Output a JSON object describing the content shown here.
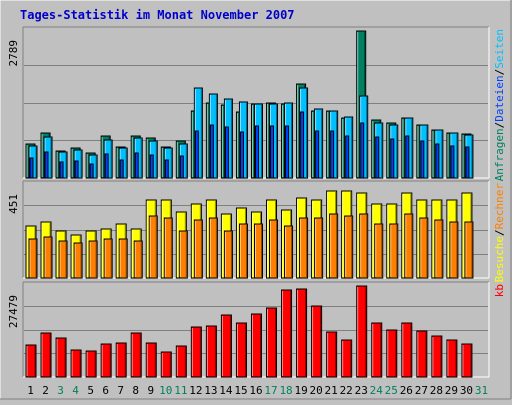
{
  "title": "Tages-Statistik im Monat November 2007",
  "colors": {
    "background": "#c0c0c0",
    "title": "#0000cc",
    "hits": "#008060",
    "files": "#0040ff",
    "pages": "#00c0ff",
    "visits": "#ffff00",
    "sites": "#ff8000",
    "kbytes": "#ff0000",
    "weekend_label": "#00805c"
  },
  "chart_data": {
    "type": "bar",
    "title": "Tages-Statistik im Monat November 2007",
    "categories": [
      "1",
      "2",
      "3",
      "4",
      "5",
      "6",
      "7",
      "8",
      "9",
      "10",
      "11",
      "12",
      "13",
      "14",
      "15",
      "16",
      "17",
      "18",
      "19",
      "20",
      "21",
      "22",
      "23",
      "24",
      "25",
      "26",
      "27",
      "28",
      "29",
      "30",
      "31"
    ],
    "weekend_days": [
      "3",
      "4",
      "10",
      "11",
      "17",
      "18",
      "24",
      "25",
      "31"
    ],
    "panels": [
      {
        "id": "requests",
        "max_label": "2789",
        "ymax": 2789,
        "legend": [
          "Anfragen",
          "/",
          "Dateien",
          "/",
          "Seiten"
        ],
        "series": [
          {
            "name": "Anfragen",
            "values": [
              650,
              860,
              520,
              570,
              470,
              790,
              580,
              800,
              750,
              580,
              700,
              1280,
              1430,
              1390,
              1250,
              1400,
              1420,
              1400,
              1790,
              1270,
              1270,
              1130,
              2789,
              1100,
              1050,
              1130,
              1000,
              920,
              860,
              840,
              0
            ]
          },
          {
            "name": "Dateien",
            "values": [
              380,
              500,
              300,
              330,
              270,
              460,
              340,
              470,
              440,
              340,
              410,
              900,
              1000,
              970,
              870,
              980,
              990,
              980,
              1250,
              890,
              890,
              790,
              1050,
              770,
              740,
              790,
              700,
              640,
              600,
              590,
              0
            ]
          },
          {
            "name": "Seiten",
            "values": [
              600,
              780,
              500,
              530,
              440,
              730,
              560,
              750,
              700,
              560,
              650,
              1700,
              1600,
              1500,
              1450,
              1410,
              1410,
              1420,
              1700,
              1300,
              1270,
              1150,
              1550,
              1040,
              1000,
              1130,
              1000,
              920,
              860,
              820,
              0
            ]
          }
        ]
      },
      {
        "id": "visits",
        "max_label": "451",
        "ymax": 451,
        "legend": [
          "Besuche",
          "/",
          "Rechner"
        ],
        "series": [
          {
            "name": "Besuche",
            "values": [
              250,
              270,
              230,
              210,
              230,
              240,
              260,
              240,
              380,
              380,
              320,
              360,
              380,
              310,
              340,
              320,
              380,
              330,
              390,
              380,
              420,
              420,
              410,
              360,
              360,
              410,
              380,
              380,
              380,
              410,
              0
            ]
          },
          {
            "name": "Rechner",
            "values": [
              190,
              200,
              180,
              170,
              180,
              190,
              190,
              180,
              300,
              290,
              230,
              280,
              290,
              230,
              260,
              260,
              280,
              250,
              290,
              290,
              310,
              300,
              310,
              260,
              260,
              310,
              290,
              280,
              270,
              270,
              0
            ]
          }
        ]
      },
      {
        "id": "kbytes",
        "max_label": "27479",
        "ymax": 27479,
        "legend": [
          "kb"
        ],
        "series": [
          {
            "name": "kb",
            "values": [
              9600,
              13300,
              11700,
              8200,
              7900,
              9900,
              10300,
              13300,
              10400,
              7700,
              9500,
              15000,
              15500,
              18600,
              16400,
              19000,
              20800,
              26200,
              26600,
              21500,
              13600,
              11300,
              27479,
              16300,
              14100,
              16300,
              13800,
              12300,
              11300,
              10100,
              0
            ]
          }
        ]
      }
    ]
  }
}
